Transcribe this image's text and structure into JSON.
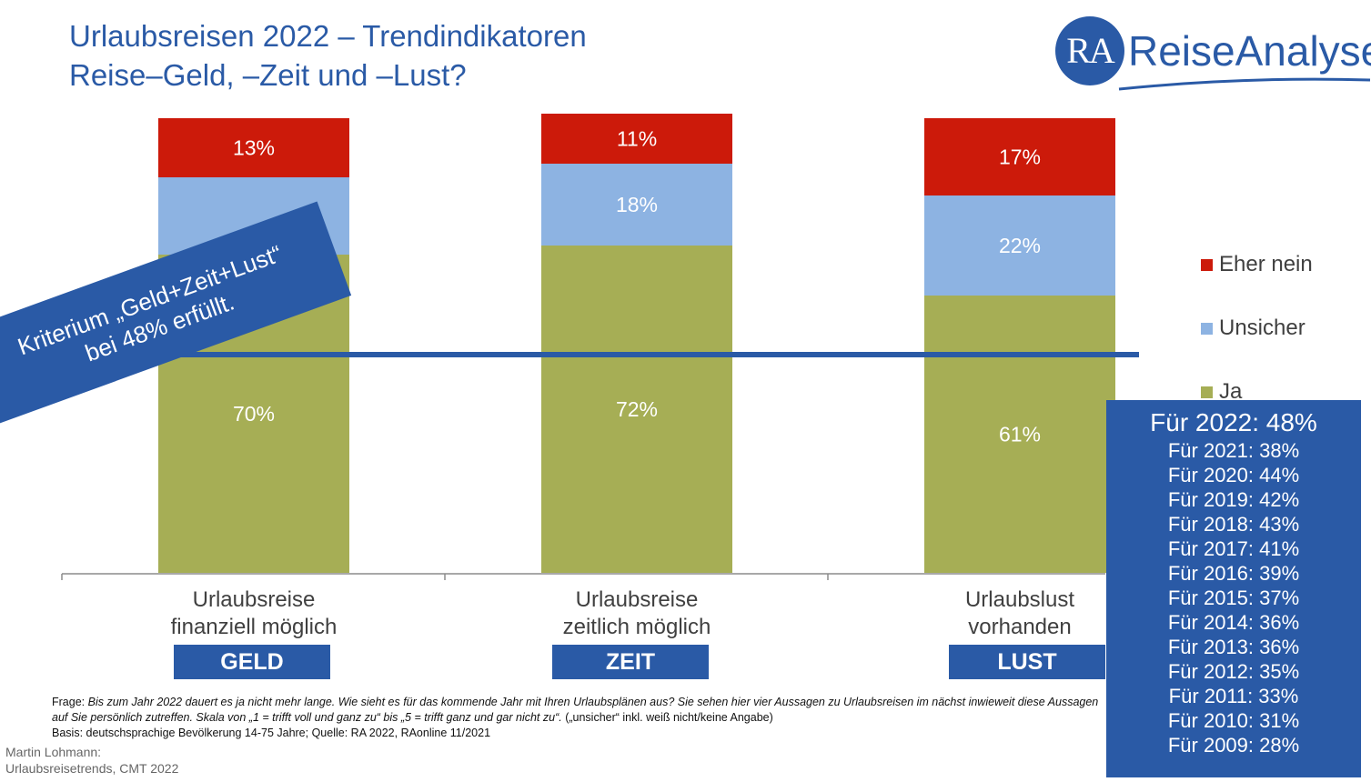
{
  "title": {
    "line1": "Urlaubsreisen 2022 – Trendindikatoren",
    "line2": "Reise–Geld, –Zeit und –Lust?"
  },
  "logo": {
    "mark": "RA",
    "text": "ReiseAnalyse",
    "mark_color": "#2a5aa6"
  },
  "chart_data": {
    "type": "bar",
    "stacked": true,
    "title": "",
    "xlabel": "",
    "ylabel": "",
    "ylim": [
      0,
      100
    ],
    "categories": [
      "Urlaubsreise finanziell möglich",
      "Urlaubsreise zeitlich möglich",
      "Urlaubslust vorhanden"
    ],
    "category_lines": [
      [
        "Urlaubsreise",
        "finanziell möglich"
      ],
      [
        "Urlaubsreise",
        "zeitlich möglich"
      ],
      [
        "Urlaubslust",
        "vorhanden"
      ]
    ],
    "category_badges": [
      "GELD",
      "ZEIT",
      "LUST"
    ],
    "series": [
      {
        "name": "Ja",
        "color": "#a6ae55",
        "values": [
          70,
          72,
          61
        ],
        "labels": [
          "70%",
          "72%",
          "61%"
        ]
      },
      {
        "name": "Unsicher",
        "color": "#8db3e2",
        "values": [
          17,
          18,
          22
        ],
        "labels": [
          "",
          "18%",
          "22%"
        ]
      },
      {
        "name": "Eher nein",
        "color": "#cc1a0a",
        "values": [
          13,
          11,
          17
        ],
        "labels": [
          "13%",
          "11%",
          "17%"
        ]
      }
    ],
    "reference_line": {
      "value": 48
    },
    "legend": {
      "position": "right",
      "items": [
        {
          "label": "Eher nein",
          "color": "#cc1a0a"
        },
        {
          "label": "Unsicher",
          "color": "#8db3e2"
        },
        {
          "label": "Ja",
          "color": "#a6ae55"
        }
      ]
    }
  },
  "banner": {
    "line1": "Kriterium „Geld+Zeit+Lust“",
    "line2": "bei 48% erfüllt."
  },
  "history": {
    "main": "Für 2022: 48%",
    "items": [
      "Für 2021: 38%",
      "Für 2020: 44%",
      "Für 2019: 42%",
      "Für 2018: 43%",
      "Für 2017: 41%",
      "Für 2016: 39%",
      "Für 2015: 37%",
      "Für 2014: 36%",
      "Für 2013: 36%",
      "Für 2012: 35%",
      "Für 2011: 33%",
      "Für 2010: 31%",
      "Für 2009: 28%"
    ]
  },
  "footnote": {
    "question_prefix": "Frage: ",
    "question": "Bis zum Jahr 2022 dauert es ja nicht mehr lange. Wie sieht es für das kommende Jahr mit Ihren Urlaubsplänen aus? Sie sehen hier vier Aussagen zu Urlaubsreisen im nächst inwieweit diese Aussagen auf Sie persönlich zutreffen. Skala von „1 = trifft voll und ganz zu“ bis „5 = trifft ganz und gar nicht zu“.",
    "question_suffix": " („unsicher“ inkl. weiß nicht/keine Angabe)",
    "basis": "Basis: deutschsprachige Bevölkerung 14-75 Jahre; Quelle: RA 2022, RAonline 11/2021"
  },
  "author": {
    "line1": "Martin Lohmann:",
    "line2": "Urlaubsreisetrends, CMT 2022"
  }
}
